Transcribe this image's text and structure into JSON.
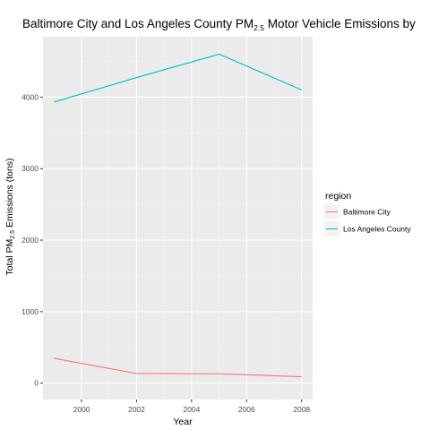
{
  "chart_data": {
    "type": "line",
    "title": {
      "before": "Baltimore City and Los Angeles County PM",
      "subscript": "2.5",
      "after": " Motor Vehicle Emissions by"
    },
    "xlabel": "Year",
    "ylabel": {
      "before": "Total PM",
      "subscript": "2.5",
      "after": " Emissions (tons)"
    },
    "xlim": [
      1998.6,
      2008.4
    ],
    "ylim": [
      -230,
      4845
    ],
    "x_ticks": [
      2000,
      2002,
      2004,
      2006,
      2008
    ],
    "x_tick_labels": [
      "2000",
      "2002",
      "2004",
      "2006",
      "2008"
    ],
    "y_ticks": [
      0,
      1000,
      2000,
      3000,
      4000
    ],
    "y_tick_labels": [
      "0",
      "1000",
      "2000",
      "3000",
      "4000"
    ],
    "grid": true,
    "legend": {
      "title": "region",
      "placement": "right"
    },
    "x": [
      1999,
      2002,
      2005,
      2008
    ],
    "series": [
      {
        "name": "Baltimore City",
        "color": "#F8766D",
        "values": [
          346.8,
          134.3,
          130.4,
          88.3
        ]
      },
      {
        "name": "Los Angeles County",
        "color": "#00BFC4",
        "values": [
          3931.1,
          4274.0,
          4601.4,
          4101.3
        ]
      }
    ],
    "colors": {
      "panel_background": "#EBEBEB",
      "grid_major": "#FFFFFF",
      "grid_minor": "#F2F2F2"
    }
  }
}
